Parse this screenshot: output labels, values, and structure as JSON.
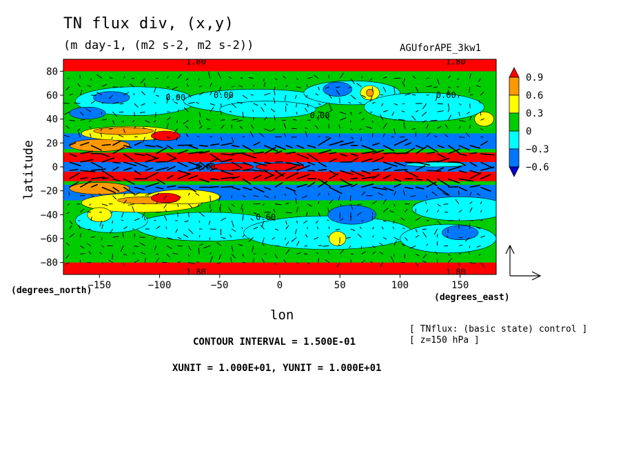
{
  "chart_data": {
    "type": "heatmap",
    "title": "TN flux div, (x,y)",
    "subtitle": "(m day-1, (m2 s-2, m2 s-2))",
    "run_name": "AGUforAPE_3kw1",
    "xlabel": "lon",
    "ylabel": "latitude",
    "x_units_label": "(degrees_east)",
    "y_units_label": "(degrees_north)",
    "xlim": [
      -180,
      180
    ],
    "ylim": [
      -90,
      90
    ],
    "x_ticks": [
      -150,
      -100,
      -50,
      0,
      50,
      100,
      150
    ],
    "y_ticks": [
      80,
      60,
      40,
      20,
      0,
      -20,
      -40,
      -60,
      -80
    ],
    "colorbar": {
      "levels": [
        0.9,
        0.6,
        0.3,
        0,
        -0.3,
        -0.6
      ],
      "level_labels": [
        "0.9",
        "0.6",
        "0.3",
        "0",
        "−0.3",
        "−0.6"
      ],
      "colors": [
        "#ff0000",
        "#ff9900",
        "#ffff00",
        "#00cc00",
        "#00ffff",
        "#0077ff",
        "#0000cc"
      ]
    },
    "contour_labels": [
      "0.00",
      "0.00",
      "0.00",
      "0.00",
      "0.60",
      "0.00",
      "1.80",
      "1.80",
      "1.80",
      "1.80"
    ],
    "notes": [
      "[ TNflux: (basic state) control ]",
      "[ z=150 hPa ]"
    ],
    "contour_interval": "CONTOUR INTERVAL = 1.500E-01",
    "vector_units": "XUNIT = 1.000E+01, YUNIT = 1.000E+01",
    "bands": [
      {
        "lat": [
          80,
          90
        ],
        "level": 0.9
      },
      {
        "lat": [
          -90,
          -80
        ],
        "level": 0.9
      },
      {
        "lat": [
          15,
          28
        ],
        "level": -0.6
      },
      {
        "lat": [
          4,
          12
        ],
        "level": 0.9
      },
      {
        "lat": [
          -4,
          4
        ],
        "level": -0.6
      },
      {
        "lat": [
          -12,
          -4
        ],
        "level": 0.9
      },
      {
        "lat": [
          -28,
          -15
        ],
        "level": -0.6
      }
    ]
  }
}
